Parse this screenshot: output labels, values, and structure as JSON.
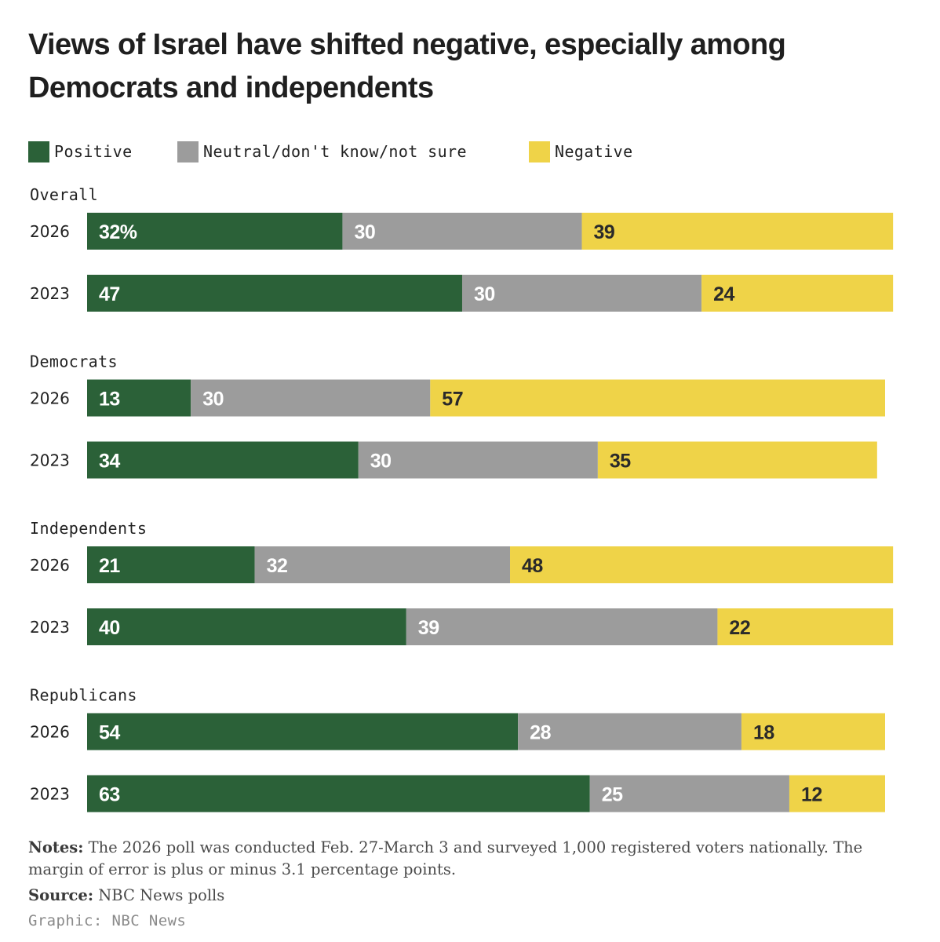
{
  "title": "Views of Israel have shifted negative, especially among Democrats and independents",
  "legend": [
    {
      "label": "Positive",
      "color": "#2b6138"
    },
    {
      "label": "Neutral/don't know/not sure",
      "color": "#9c9c9c"
    },
    {
      "label": "Negative",
      "color": "#efd348"
    }
  ],
  "chart_data": {
    "type": "bar",
    "orientation": "horizontal",
    "stacked": true,
    "xlim": [
      0,
      100
    ],
    "unit": "%",
    "series": [
      "Positive",
      "Neutral/don't know/not sure",
      "Negative"
    ],
    "groups": [
      {
        "name": "Overall",
        "rows": [
          {
            "year": "2026",
            "values": [
              32,
              30,
              39
            ],
            "labels": [
              "32%",
              "30",
              "39"
            ]
          },
          {
            "year": "2023",
            "values": [
              47,
              30,
              24
            ],
            "labels": [
              "47",
              "30",
              "24"
            ]
          }
        ]
      },
      {
        "name": "Democrats",
        "rows": [
          {
            "year": "2026",
            "values": [
              13,
              30,
              57
            ],
            "labels": [
              "13",
              "30",
              "57"
            ]
          },
          {
            "year": "2023",
            "values": [
              34,
              30,
              35
            ],
            "labels": [
              "34",
              "30",
              "35"
            ]
          }
        ]
      },
      {
        "name": "Independents",
        "rows": [
          {
            "year": "2026",
            "values": [
              21,
              32,
              48
            ],
            "labels": [
              "21",
              "32",
              "48"
            ]
          },
          {
            "year": "2023",
            "values": [
              40,
              39,
              22
            ],
            "labels": [
              "40",
              "39",
              "22"
            ]
          }
        ]
      },
      {
        "name": "Republicans",
        "rows": [
          {
            "year": "2026",
            "values": [
              54,
              28,
              18
            ],
            "labels": [
              "54",
              "28",
              "18"
            ]
          },
          {
            "year": "2023",
            "values": [
              63,
              25,
              12
            ],
            "labels": [
              "63",
              "25",
              "12"
            ]
          }
        ]
      }
    ]
  },
  "notes": {
    "label": "Notes:",
    "text": " The 2026 poll was conducted Feb. 27-March 3 and surveyed 1,000 registered voters nationally. The margin of error is plus or minus 3.1 percentage points."
  },
  "source": {
    "label": "Source:",
    "text": " NBC News polls"
  },
  "credit": "Graphic: NBC News"
}
